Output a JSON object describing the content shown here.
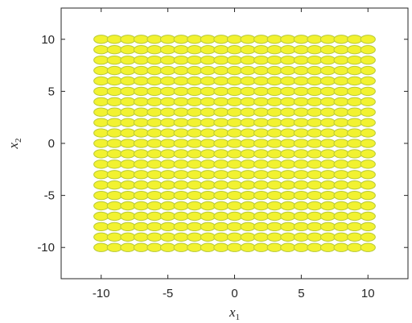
{
  "chart_data": {
    "type": "scatter",
    "xlabel": "x",
    "xlabel_sub": "1",
    "ylabel": "x",
    "ylabel_sub": "2",
    "xlim": [
      -13,
      13
    ],
    "ylim": [
      -13,
      13
    ],
    "xticks": [
      -10,
      -5,
      0,
      5,
      10
    ],
    "xtick_labels": [
      "-10",
      "-5",
      "0",
      "5",
      "10"
    ],
    "yticks": [
      -10,
      -5,
      0,
      5,
      10
    ],
    "ytick_labels": [
      "-10",
      "-5",
      "0",
      "5",
      "10"
    ],
    "grid": false,
    "marker": "ellipse",
    "ellipse_semi_axes": [
      0.55,
      0.4
    ],
    "grid_points": {
      "x": [
        -10,
        -9,
        -8,
        -7,
        -6,
        -5,
        -4,
        -3,
        -2,
        -1,
        0,
        1,
        2,
        3,
        4,
        5,
        6,
        7,
        8,
        9,
        10
      ],
      "y": [
        -10,
        -9,
        -8,
        -7,
        -6,
        -5,
        -4,
        -3,
        -2,
        -1,
        0,
        1,
        2,
        3,
        4,
        5,
        6,
        7,
        8,
        9,
        10
      ]
    },
    "colors": {
      "fill": "#f2f230",
      "edge": "#b8c936",
      "axis": "#262626"
    }
  }
}
